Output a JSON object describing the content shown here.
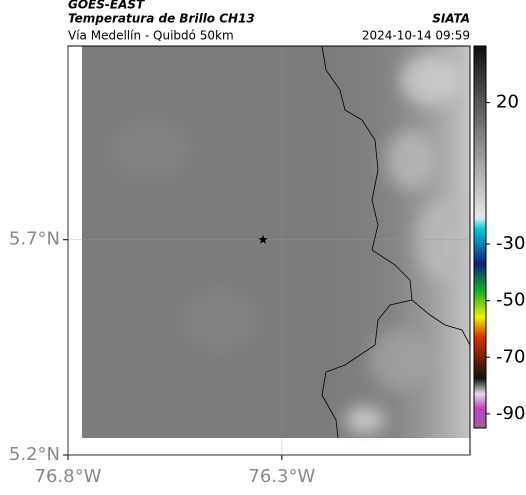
{
  "header": {
    "satellite": "GOES-EAST",
    "product": "Temperatura de Brillo CH13",
    "agency": "SIATA",
    "region": "Vía Medellín - Quibdó 50km",
    "datetime": "2024-10-14 09:59"
  },
  "map": {
    "xlim": [
      -76.8,
      -75.86
    ],
    "ylim": [
      5.2,
      6.15
    ],
    "xticks": [
      {
        "value": -76.8,
        "label": "76.8°W"
      },
      {
        "value": -76.3,
        "label": "76.3°W"
      }
    ],
    "yticks": [
      {
        "value": 5.7,
        "label": "5.7°N"
      },
      {
        "value": 5.2,
        "label": "5.2°N"
      }
    ],
    "marker": {
      "lon": -76.344,
      "lat": 5.7
    }
  },
  "colorbar": {
    "lim": [
      40,
      -95
    ],
    "ticks": [
      20,
      -30,
      -50,
      -70,
      -90
    ]
  }
}
